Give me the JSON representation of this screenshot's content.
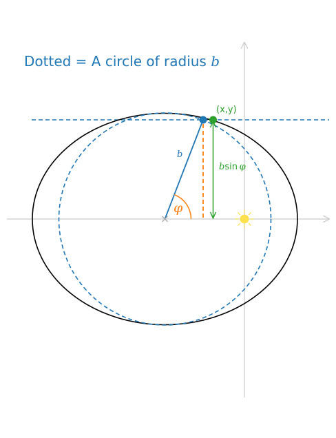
{
  "title": {
    "prefix": "Dotted = A circle of radius ",
    "var": "b"
  },
  "labels": {
    "point": "(x,y)",
    "radius": "b",
    "angle": "φ",
    "height_b": "b",
    "height_sin": "sin ",
    "height_phi": "φ"
  },
  "icons": {
    "center_marker": "x-mark-icon",
    "focus_marker": "sun-icon"
  },
  "colors": {
    "title": "#1f77b4",
    "circle": "#1f77b4",
    "ellipse": "#000000",
    "angle": "#ff7f0e",
    "point": "#2ca02c",
    "axis": "#cccccc",
    "sun": "#ffe14d"
  }
}
